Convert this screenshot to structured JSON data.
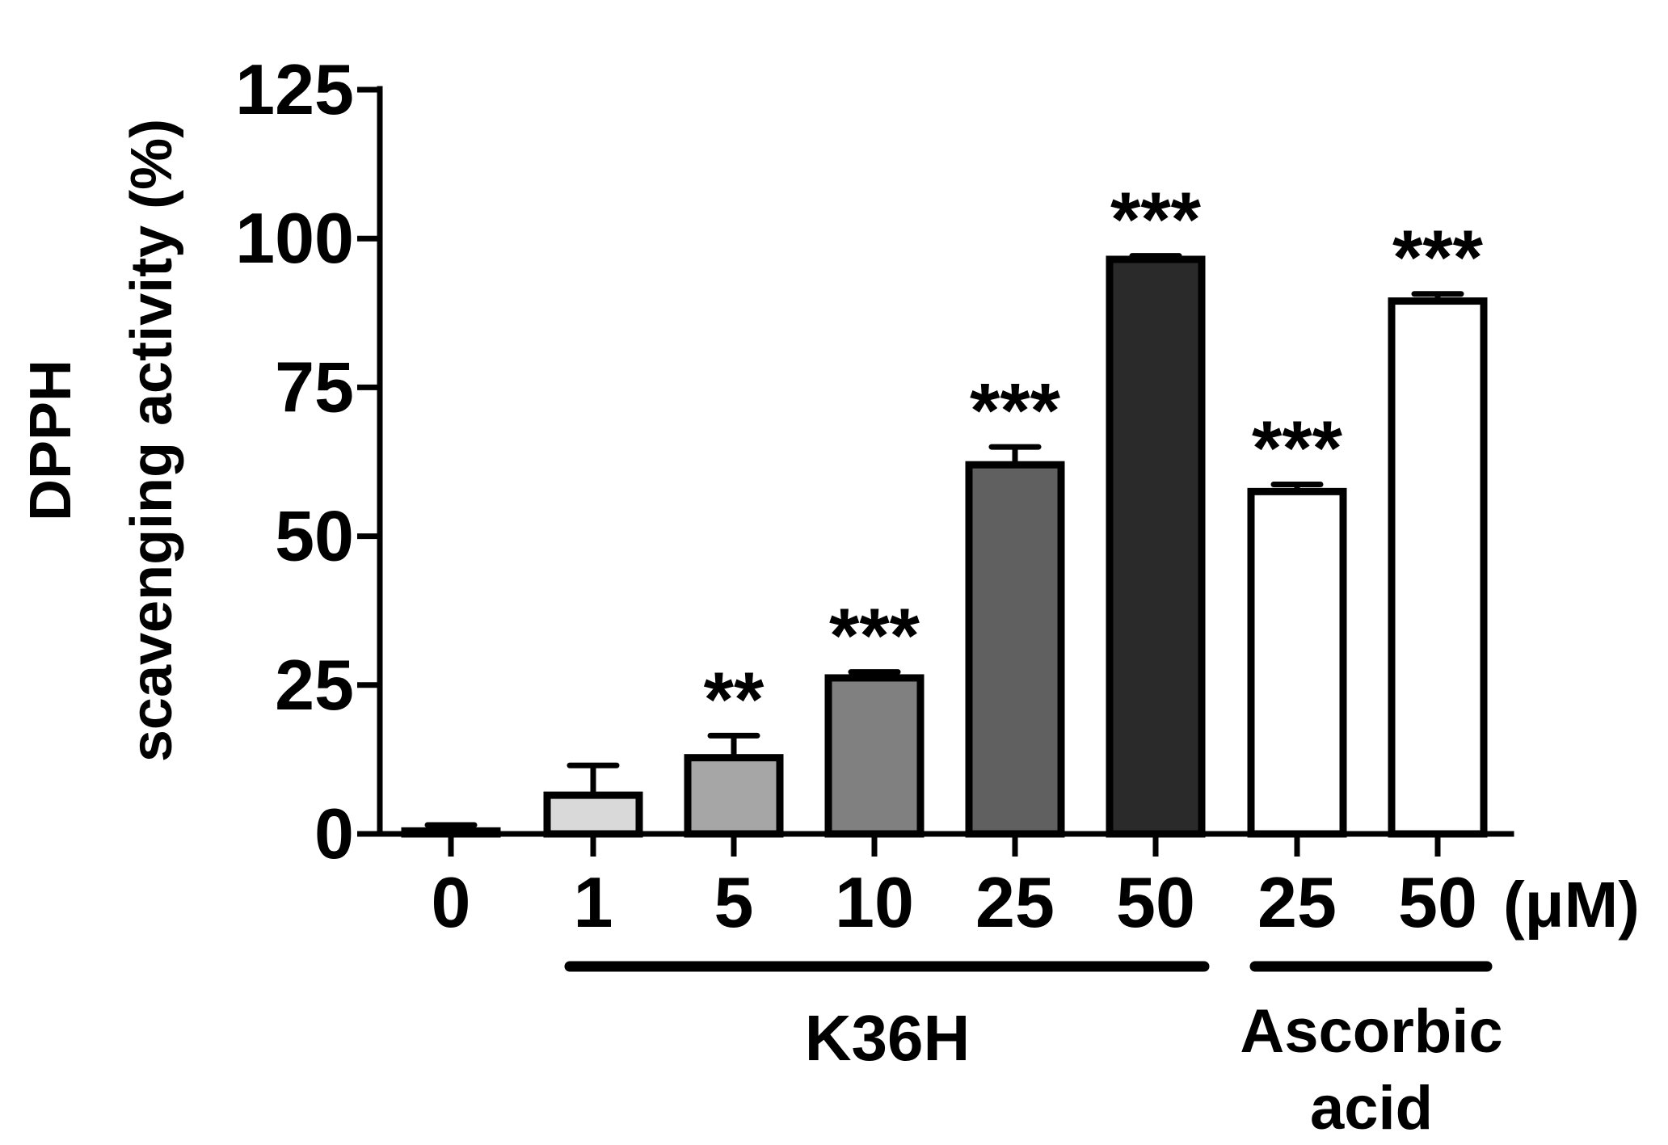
{
  "chart_data": {
    "type": "bar",
    "ylabel_line1": "DPPH",
    "ylabel_line2": "scavenging activity (%)",
    "ylim": [
      0,
      125
    ],
    "yticks": [
      "0",
      "25",
      "50",
      "75",
      "100",
      "125"
    ],
    "unit_label": "(μM)",
    "groups": [
      {
        "label": "K36H"
      },
      {
        "label_line1": "Ascorbic",
        "label_line2": "acid"
      }
    ],
    "bars": [
      {
        "category": "0",
        "value": 0.5,
        "error": 1.0,
        "significance": "",
        "fill": "#ffffff"
      },
      {
        "category": "1",
        "value": 6.5,
        "error": 5.0,
        "significance": "",
        "fill": "#d9d9d9"
      },
      {
        "category": "5",
        "value": 12.8,
        "error": 3.7,
        "significance": "**",
        "fill": "#a6a6a6"
      },
      {
        "category": "10",
        "value": 26.2,
        "error": 1.0,
        "significance": "***",
        "fill": "#808080"
      },
      {
        "category": "25",
        "value": 62.0,
        "error": 3.0,
        "significance": "***",
        "fill": "#606060"
      },
      {
        "category": "50",
        "value": 96.5,
        "error": 0.6,
        "significance": "***",
        "fill": "#2a2a2a"
      },
      {
        "category": "25",
        "value": 57.5,
        "error": 1.2,
        "significance": "***",
        "fill": "#ffffff"
      },
      {
        "category": "50",
        "value": 89.5,
        "error": 1.2,
        "significance": "***",
        "fill": "#ffffff"
      }
    ]
  }
}
